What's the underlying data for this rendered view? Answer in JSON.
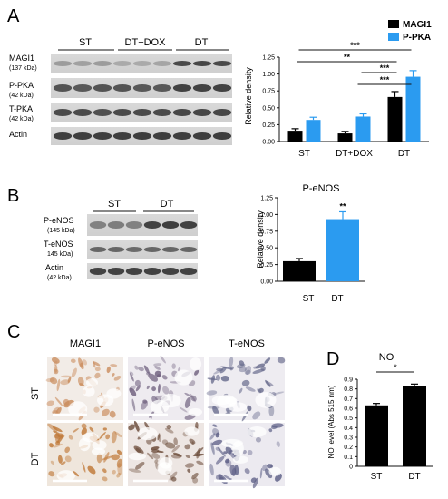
{
  "panels": {
    "A": {
      "letter": "A",
      "groups": [
        "ST",
        "DT+DOX",
        "DT"
      ],
      "blots": [
        {
          "name": "MAGI1",
          "kda": "(137 kDa)"
        },
        {
          "name": "P-PKA",
          "kda": "(42 kDa)"
        },
        {
          "name": "T-PKA",
          "kda": "(42 kDa)"
        },
        {
          "name": "Actin",
          "kda": "(42 kDa)"
        }
      ]
    },
    "B": {
      "letter": "B",
      "groups": [
        "ST",
        "DT"
      ],
      "blots": [
        {
          "name": "P-eNOS",
          "kda": "(145 kDa)"
        },
        {
          "name": "T-eNOS",
          "kda": "145 kDa)"
        },
        {
          "name": "Actin",
          "kda": "(42 kDa)"
        }
      ]
    },
    "C": {
      "letter": "C",
      "columns": [
        "MAGI1",
        "P-eNOS",
        "T-eNOS"
      ],
      "rows": [
        "ST",
        "DT"
      ]
    },
    "D": {
      "letter": "D"
    }
  },
  "chart_data": [
    {
      "type": "bar",
      "panel": "A",
      "categories": [
        "ST",
        "DT+DOX",
        "DT"
      ],
      "series": [
        {
          "name": "MAGI1",
          "color": "#000000",
          "values": [
            0.16,
            0.12,
            0.66
          ],
          "errors": [
            0.03,
            0.03,
            0.08
          ]
        },
        {
          "name": "P-PKA",
          "color": "#2b9bf0",
          "values": [
            0.32,
            0.37,
            0.96
          ],
          "errors": [
            0.04,
            0.04,
            0.09
          ]
        }
      ],
      "ylabel": "Relative density",
      "ylim": [
        0,
        1.25
      ],
      "yticks": [
        "0.00",
        "0.25",
        "0.50",
        "0.75",
        "1.00",
        "1.25"
      ],
      "significance": [
        {
          "from": 0,
          "to": 2,
          "label": "***"
        },
        {
          "from": 0,
          "to": 2,
          "label": "**"
        },
        {
          "from": 1,
          "to": 2,
          "label": "***"
        },
        {
          "from": 1,
          "to": 2,
          "label": "***"
        }
      ],
      "legend": "top-right"
    },
    {
      "type": "bar",
      "panel": "B",
      "title": "P-eNOS",
      "categories": [
        "ST",
        "DT"
      ],
      "values": [
        0.3,
        0.93
      ],
      "errors": [
        0.04,
        0.11
      ],
      "colors": [
        "#000000",
        "#2b9bf0"
      ],
      "ylabel": "Relative density",
      "ylim": [
        0,
        1.25
      ],
      "yticks": [
        "0.00",
        "0.25",
        "0.50",
        "0.75",
        "1.00",
        "1.25"
      ],
      "significance": [
        {
          "index": 1,
          "label": "**"
        }
      ]
    },
    {
      "type": "bar",
      "panel": "D",
      "title": "NO",
      "categories": [
        "ST",
        "DT"
      ],
      "values": [
        0.63,
        0.83
      ],
      "errors": [
        0.02,
        0.02
      ],
      "colors": [
        "#000000",
        "#000000"
      ],
      "ylabel": "NO level (Abs 515 nm)",
      "ylim": [
        0,
        0.9
      ],
      "yticks": [
        "0",
        "0.1",
        "0.2",
        "0.3",
        "0.4",
        "0.5",
        "0.6",
        "0.7",
        "0.8",
        "0.9"
      ],
      "significance": [
        {
          "from": 0,
          "to": 1,
          "label": "*"
        }
      ]
    }
  ]
}
